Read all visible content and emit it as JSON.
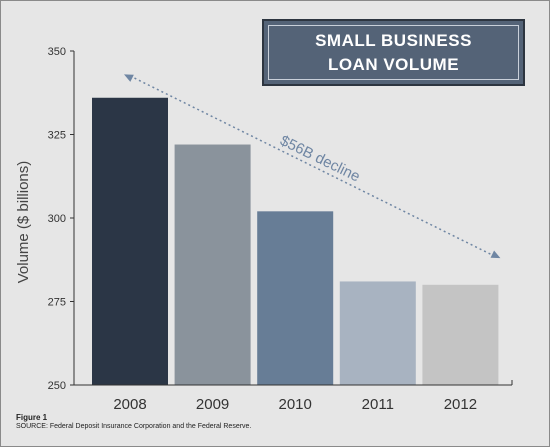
{
  "chart_data": {
    "type": "bar",
    "title": "SMALL BUSINESS\nLOAN VOLUME",
    "categories": [
      "2008",
      "2009",
      "2010",
      "2011",
      "2012"
    ],
    "values": [
      336,
      322,
      302,
      281,
      280
    ],
    "colors": [
      "#2b3646",
      "#8a939c",
      "#677d96",
      "#a8b3c1",
      "#c4c4c4"
    ],
    "ylabel": "Volume ($ billions)",
    "ylim": [
      250,
      350
    ],
    "yticks": [
      250,
      275,
      300,
      325,
      350
    ],
    "grid": false,
    "annotation": "$56B decline",
    "trend_from": {
      "category": "2008",
      "value": 343
    },
    "trend_to": {
      "category": "2012",
      "value": 288
    }
  },
  "footer": {
    "figure_label": "Figure 1",
    "source": "SOURCE: Federal Deposit Insurance Corporation and the Federal Reserve."
  }
}
